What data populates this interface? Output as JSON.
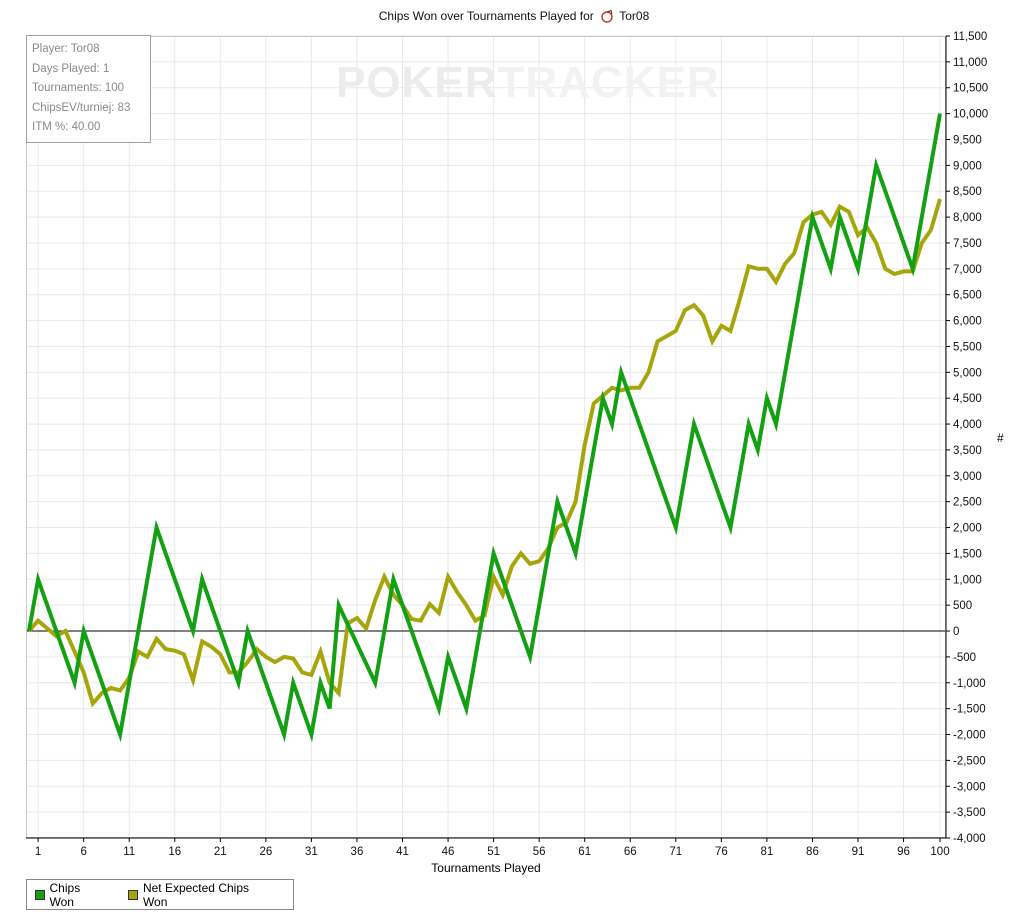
{
  "colors": {
    "chips_won": "#13a013",
    "expected": "#a6a60c",
    "grid": "#e8e8e8",
    "axis": "#000000"
  },
  "title": {
    "prefix": "Chips Won over Tournaments Played for",
    "player": "Tor08",
    "icon": "poker-chip-icon"
  },
  "watermark": {
    "part1": "POKER",
    "part2": "TRACKER"
  },
  "stats": [
    "Player: Tor08",
    "Days Played: 1",
    "Tournaments: 100",
    "ChipsEV/turniej: 83",
    "ITM %: 40.00"
  ],
  "legend": [
    {
      "label": "Chips Won",
      "color": "#13a013"
    },
    {
      "label": "Net Expected Chips Won",
      "color": "#a6a60c"
    }
  ],
  "chart_data": {
    "type": "line",
    "title": "Chips Won over Tournaments Played for Tor08",
    "xlabel": "Tournaments Played",
    "ylabel": "#",
    "xlim": [
      0,
      100
    ],
    "ylim": [
      -4000,
      11500
    ],
    "x_ticks": [
      1,
      6,
      11,
      16,
      21,
      26,
      31,
      36,
      41,
      46,
      51,
      56,
      61,
      66,
      71,
      76,
      81,
      86,
      91,
      96,
      100
    ],
    "y_ticks": [
      -4000,
      -3500,
      -3000,
      -2500,
      -2000,
      -1500,
      -1000,
      -500,
      0,
      500,
      1000,
      1500,
      2000,
      2500,
      3000,
      3500,
      4000,
      4500,
      5000,
      5500,
      6000,
      6500,
      7000,
      7500,
      8000,
      8500,
      9000,
      9500,
      10000,
      10500,
      11000,
      11500
    ],
    "y_tick_labels": [
      "-4,000",
      "-3,500",
      "-3,000",
      "-2,500",
      "-2,000",
      "-1,500",
      "-1,000",
      "-500",
      "0",
      "500",
      "1,000",
      "1,500",
      "2,000",
      "2,500",
      "3,000",
      "3,500",
      "4,000",
      "4,500",
      "5,000",
      "5,500",
      "6,000",
      "6,500",
      "7,000",
      "7,500",
      "8,000",
      "8,500",
      "9,000",
      "9,500",
      "10,000",
      "10,500",
      "11,000",
      "11,500"
    ],
    "y_axis_side": "right",
    "grid": true,
    "legend_position": "bottom-left",
    "series": [
      {
        "name": "Chips Won",
        "color": "#13a013",
        "points": [
          [
            0,
            0
          ],
          [
            1,
            1000
          ],
          [
            5,
            -1000
          ],
          [
            6,
            0
          ],
          [
            10,
            -2000
          ],
          [
            14,
            2000
          ],
          [
            18,
            0
          ],
          [
            19,
            1000
          ],
          [
            23,
            -1000
          ],
          [
            24,
            0
          ],
          [
            28,
            -2000
          ],
          [
            29,
            -1000
          ],
          [
            31,
            -2000
          ],
          [
            32,
            -1000
          ],
          [
            33,
            -1500
          ],
          [
            34,
            500
          ],
          [
            38,
            -1000
          ],
          [
            40,
            1000
          ],
          [
            45,
            -1500
          ],
          [
            46,
            -500
          ],
          [
            48,
            -1500
          ],
          [
            51,
            1500
          ],
          [
            52,
            1000
          ],
          [
            55,
            -500
          ],
          [
            58,
            2500
          ],
          [
            60,
            1500
          ],
          [
            63,
            4500
          ],
          [
            64,
            4000
          ],
          [
            65,
            5000
          ],
          [
            71,
            2000
          ],
          [
            73,
            4000
          ],
          [
            77,
            2000
          ],
          [
            79,
            4000
          ],
          [
            80,
            3500
          ],
          [
            81,
            4500
          ],
          [
            82,
            4000
          ],
          [
            86,
            8000
          ],
          [
            88,
            7000
          ],
          [
            89,
            8000
          ],
          [
            91,
            7000
          ],
          [
            93,
            9000
          ],
          [
            97,
            7000
          ],
          [
            100,
            10000
          ]
        ]
      },
      {
        "name": "Net Expected Chips Won",
        "color": "#a6a60c",
        "points": [
          [
            0,
            0
          ],
          [
            1,
            200
          ],
          [
            2,
            50
          ],
          [
            3,
            -100
          ],
          [
            4,
            0
          ],
          [
            5,
            -400
          ],
          [
            6,
            -800
          ],
          [
            7,
            -1400
          ],
          [
            8,
            -1200
          ],
          [
            9,
            -1100
          ],
          [
            10,
            -1150
          ],
          [
            11,
            -900
          ],
          [
            12,
            -400
          ],
          [
            13,
            -500
          ],
          [
            14,
            -150
          ],
          [
            15,
            -350
          ],
          [
            16,
            -380
          ],
          [
            17,
            -450
          ],
          [
            18,
            -950
          ],
          [
            19,
            -200
          ],
          [
            20,
            -300
          ],
          [
            21,
            -450
          ],
          [
            22,
            -800
          ],
          [
            23,
            -800
          ],
          [
            24,
            -600
          ],
          [
            25,
            -350
          ],
          [
            26,
            -500
          ],
          [
            27,
            -600
          ],
          [
            28,
            -500
          ],
          [
            29,
            -530
          ],
          [
            30,
            -800
          ],
          [
            31,
            -850
          ],
          [
            32,
            -400
          ],
          [
            33,
            -1000
          ],
          [
            34,
            -1200
          ],
          [
            35,
            150
          ],
          [
            36,
            250
          ],
          [
            37,
            50
          ],
          [
            38,
            600
          ],
          [
            39,
            1050
          ],
          [
            40,
            700
          ],
          [
            41,
            500
          ],
          [
            42,
            230
          ],
          [
            43,
            200
          ],
          [
            44,
            520
          ],
          [
            45,
            350
          ],
          [
            46,
            1050
          ],
          [
            47,
            750
          ],
          [
            48,
            500
          ],
          [
            49,
            200
          ],
          [
            50,
            300
          ],
          [
            51,
            1050
          ],
          [
            52,
            700
          ],
          [
            53,
            1250
          ],
          [
            54,
            1500
          ],
          [
            55,
            1300
          ],
          [
            56,
            1350
          ],
          [
            57,
            1600
          ],
          [
            58,
            2000
          ],
          [
            59,
            2100
          ],
          [
            60,
            2500
          ],
          [
            61,
            3600
          ],
          [
            62,
            4400
          ],
          [
            63,
            4550
          ],
          [
            64,
            4700
          ],
          [
            65,
            4650
          ],
          [
            66,
            4700
          ],
          [
            67,
            4700
          ],
          [
            68,
            5000
          ],
          [
            69,
            5600
          ],
          [
            70,
            5700
          ],
          [
            71,
            5800
          ],
          [
            72,
            6200
          ],
          [
            73,
            6300
          ],
          [
            74,
            6100
          ],
          [
            75,
            5600
          ],
          [
            76,
            5900
          ],
          [
            77,
            5800
          ],
          [
            78,
            6400
          ],
          [
            79,
            7050
          ],
          [
            80,
            7000
          ],
          [
            81,
            7000
          ],
          [
            82,
            6750
          ],
          [
            83,
            7100
          ],
          [
            84,
            7300
          ],
          [
            85,
            7900
          ],
          [
            86,
            8050
          ],
          [
            87,
            8100
          ],
          [
            88,
            7850
          ],
          [
            89,
            8200
          ],
          [
            90,
            8100
          ],
          [
            91,
            7650
          ],
          [
            92,
            7800
          ],
          [
            93,
            7500
          ],
          [
            94,
            7000
          ],
          [
            95,
            6900
          ],
          [
            96,
            6950
          ],
          [
            97,
            6950
          ],
          [
            98,
            7500
          ],
          [
            99,
            7750
          ],
          [
            100,
            8350
          ]
        ]
      }
    ]
  }
}
